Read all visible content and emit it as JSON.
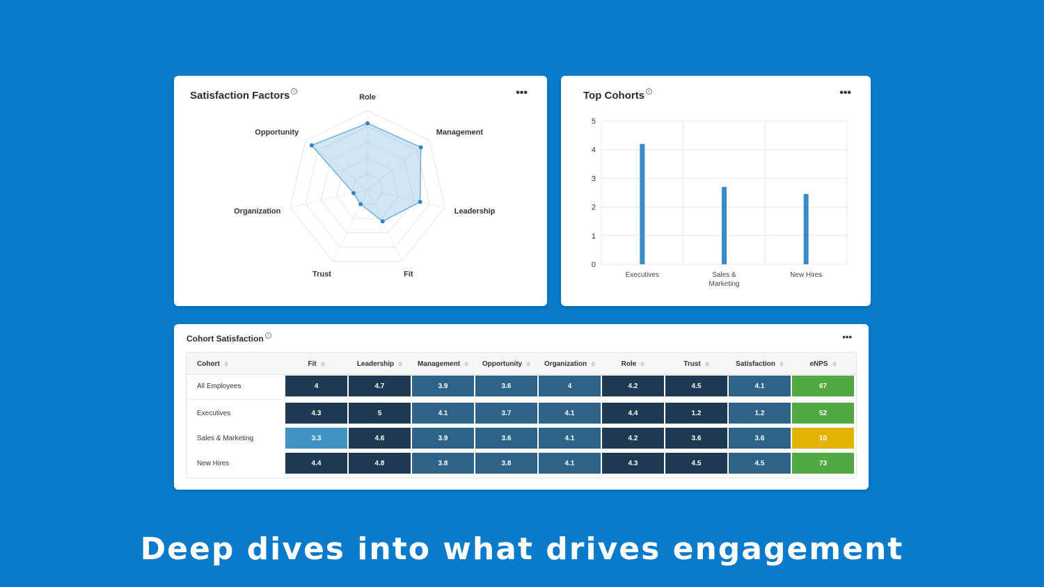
{
  "radar": {
    "title": "Satisfaction Factors",
    "more": "•••",
    "chart_data": {
      "type": "radar",
      "axes": [
        "Role",
        "Management",
        "Leadership",
        "Fit",
        "Trust",
        "Organization",
        "Opportunity"
      ],
      "values": [
        4.2,
        4.3,
        3.4,
        2.2,
        1.0,
        0.9,
        4.5
      ],
      "range": [
        0,
        5
      ]
    }
  },
  "bar": {
    "title": "Top Cohorts",
    "more": "•••",
    "chart_data": {
      "type": "bar",
      "categories": [
        "Executives",
        "Sales & Marketing",
        "New Hires"
      ],
      "category_lines": [
        [
          "Executives"
        ],
        [
          "Sales &",
          "Marketing"
        ],
        [
          "New Hires"
        ]
      ],
      "values": [
        4.2,
        2.7,
        2.45
      ],
      "ylim": [
        0,
        5
      ],
      "yticks": [
        "0",
        "1",
        "2",
        "3",
        "4",
        "5"
      ]
    }
  },
  "table": {
    "title": "Cohort Satisfaction",
    "more": "•••",
    "columns": [
      "Cohort",
      "Fit",
      "Leadership",
      "Management",
      "Opportunity",
      "Organization",
      "Role",
      "Trust",
      "Satisfaction",
      "eNPS"
    ],
    "rows": [
      {
        "label": "All Employees",
        "cells": [
          "4",
          "4.7",
          "3.9",
          "3.6",
          "4",
          "4.2",
          "4.5",
          "4.1",
          "67"
        ]
      },
      {
        "label": "Executives",
        "cells": [
          "4.3",
          "5",
          "4.1",
          "3.7",
          "4.1",
          "4.4",
          "1.2",
          "1.2",
          "52"
        ]
      },
      {
        "label": "Sales & Marketing",
        "cells": [
          "3.3",
          "4.6",
          "3.9",
          "3.6",
          "4.1",
          "4.2",
          "3.6",
          "3.6",
          "10"
        ]
      },
      {
        "label": "New Hires",
        "cells": [
          "4.4",
          "4.8",
          "3.8",
          "3.8",
          "4.1",
          "4.3",
          "4.5",
          "4.5",
          "73"
        ]
      }
    ],
    "colors": {
      "dark": "#1d3a52",
      "mid": "#2e6389",
      "light": "#4193c6",
      "green": "#52a944",
      "yellow": "#e2b303"
    },
    "cell_tones": [
      [
        "dark",
        "dark",
        "mid",
        "mid",
        "mid",
        "dark",
        "dark",
        "mid",
        "green"
      ],
      [
        "dark",
        "dark",
        "mid",
        "mid",
        "mid",
        "dark",
        "dark",
        "mid",
        "green"
      ],
      [
        "light",
        "dark",
        "mid",
        "mid",
        "mid",
        "dark",
        "dark",
        "mid",
        "yellow"
      ],
      [
        "dark",
        "dark",
        "mid",
        "mid",
        "mid",
        "dark",
        "dark",
        "mid",
        "green"
      ]
    ]
  },
  "caption": "Deep dives into what drives engagement"
}
